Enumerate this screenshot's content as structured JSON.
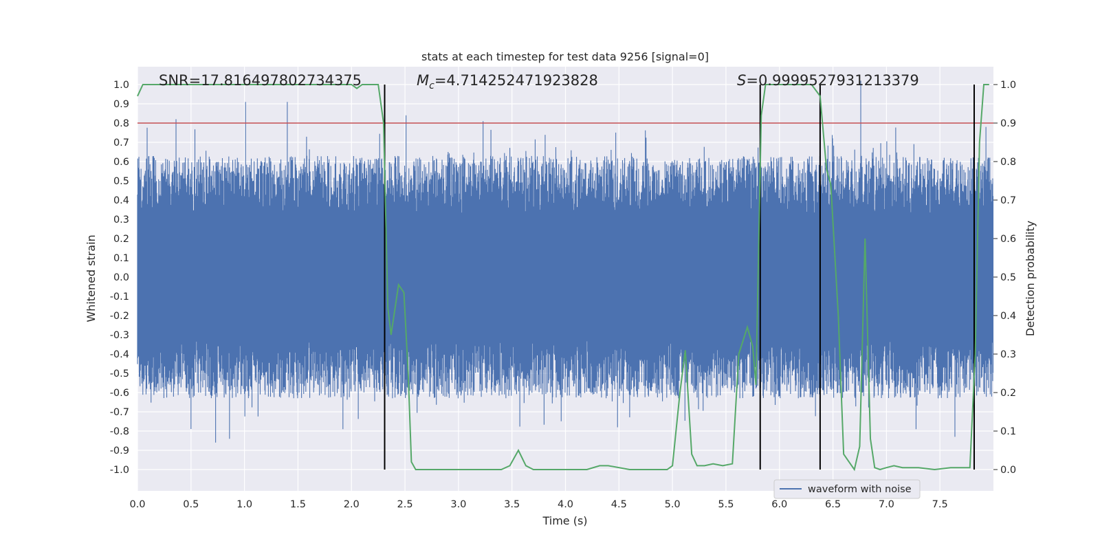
{
  "chart_data": {
    "type": "line",
    "title": "stats at each timestep for test data 9256 [signal=0]",
    "xlabel": "Time (s)",
    "ylabel": "Whitened strain",
    "ylabel_right": "Detection probability",
    "xlim": [
      0.0,
      8.0
    ],
    "ylim": [
      -1.1,
      1.1
    ],
    "ylim_right": [
      -0.05,
      1.05
    ],
    "x_ticks": [
      "0.0",
      "0.5",
      "1.0",
      "1.5",
      "2.0",
      "2.5",
      "3.0",
      "3.5",
      "4.0",
      "4.5",
      "5.0",
      "5.5",
      "6.0",
      "6.5",
      "7.0",
      "7.5"
    ],
    "y_ticks": [
      "-1.0",
      "-0.9",
      "-0.8",
      "-0.7",
      "-0.6",
      "-0.5",
      "-0.4",
      "-0.3",
      "-0.2",
      "-0.1",
      "0.0",
      "0.1",
      "0.2",
      "0.3",
      "0.4",
      "0.5",
      "0.6",
      "0.7",
      "0.8",
      "0.9",
      "1.0"
    ],
    "y_ticks_right": [
      "0.0",
      "0.1",
      "0.2",
      "0.3",
      "0.4",
      "0.5",
      "0.6",
      "0.7",
      "0.8",
      "0.9",
      "1.0"
    ],
    "grid": true,
    "legend": {
      "placement": "lower-right",
      "entries": [
        "waveform with noise"
      ]
    },
    "annotations": {
      "snr": "SNR=17.816497802734375",
      "mc_symbol": "M",
      "mc_sub": "c",
      "mc_value": "=4.714252471923828",
      "s_symbol": "S",
      "s_value": "=0.9999527931213379"
    },
    "threshold": {
      "value": 0.8,
      "color": "#c44e52"
    },
    "vlines": [
      2.31,
      5.82,
      6.38,
      7.82
    ],
    "vline_range": [
      -1.0,
      1.0
    ],
    "series": [
      {
        "name": "waveform with noise",
        "color": "#4c72b0",
        "envelope_mean": 0.48,
        "notable_peaks": [
          {
            "t": 0.36,
            "v": 0.82
          },
          {
            "t": 1.01,
            "v": 0.91
          },
          {
            "t": 1.4,
            "v": 0.91
          },
          {
            "t": 2.51,
            "v": 0.84
          },
          {
            "t": 3.23,
            "v": 0.81
          },
          {
            "t": 6.76,
            "v": 1.02
          },
          {
            "t": 7.93,
            "v": 0.78
          },
          {
            "t": 0.73,
            "v": -0.86
          },
          {
            "t": 0.86,
            "v": -0.84
          },
          {
            "t": 1.92,
            "v": -0.79
          },
          {
            "t": 7.64,
            "v": -0.83
          }
        ]
      },
      {
        "name": "Detection probability",
        "color": "#55a868",
        "axis": "right",
        "x": [
          0.0,
          0.05,
          0.5,
          1.0,
          1.5,
          2.0,
          2.05,
          2.1,
          2.15,
          2.25,
          2.3,
          2.34,
          2.37,
          2.44,
          2.49,
          2.53,
          2.56,
          2.6,
          2.65,
          3.0,
          3.4,
          3.48,
          3.56,
          3.63,
          3.7,
          3.85,
          4.2,
          4.32,
          4.4,
          4.6,
          4.95,
          5.0,
          5.07,
          5.12,
          5.18,
          5.23,
          5.3,
          5.38,
          5.47,
          5.56,
          5.62,
          5.7,
          5.75,
          5.78,
          5.83,
          5.87,
          5.93,
          6.05,
          6.2,
          6.3,
          6.38,
          6.44,
          6.48,
          6.55,
          6.6,
          6.65,
          6.7,
          6.75,
          6.8,
          6.85,
          6.89,
          6.94,
          7.0,
          7.07,
          7.15,
          7.3,
          7.45,
          7.6,
          7.72,
          7.78,
          7.83,
          7.87,
          7.91,
          7.96
        ],
        "values": [
          0.97,
          1.0,
          1.0,
          1.0,
          1.0,
          1.0,
          0.99,
          1.0,
          1.0,
          1.0,
          0.9,
          0.42,
          0.35,
          0.48,
          0.46,
          0.25,
          0.02,
          0.0,
          0.0,
          0.0,
          0.0,
          0.01,
          0.05,
          0.01,
          0.0,
          0.0,
          0.0,
          0.01,
          0.01,
          0.0,
          0.0,
          0.01,
          0.2,
          0.31,
          0.04,
          0.01,
          0.01,
          0.015,
          0.01,
          0.015,
          0.3,
          0.37,
          0.32,
          0.22,
          0.92,
          1.0,
          1.0,
          1.0,
          1.0,
          1.0,
          0.97,
          0.78,
          0.74,
          0.4,
          0.04,
          0.02,
          0.0,
          0.06,
          0.6,
          0.08,
          0.005,
          0.0,
          0.005,
          0.01,
          0.005,
          0.005,
          0.0,
          0.005,
          0.005,
          0.005,
          0.3,
          0.85,
          1.0,
          1.0
        ]
      }
    ]
  }
}
